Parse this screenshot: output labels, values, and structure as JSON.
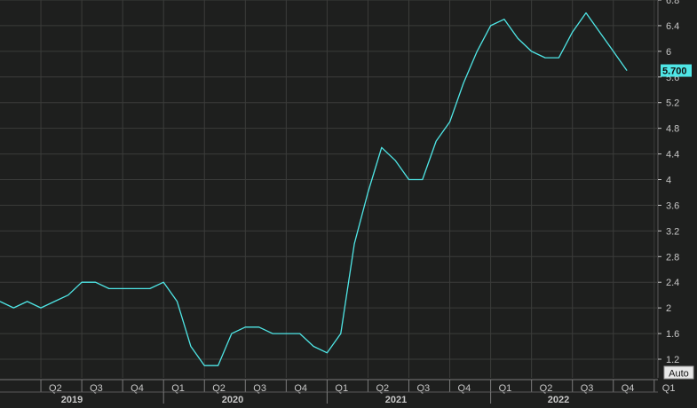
{
  "chart_data": {
    "type": "line",
    "title": "",
    "xlabel": "",
    "ylabel": "",
    "ylim": [
      1.0,
      6.8
    ],
    "y_ticks": [
      "6.8",
      "6.4",
      "6",
      "5.6",
      "5.2",
      "4.8",
      "4.4",
      "4",
      "3.6",
      "3.2",
      "2.8",
      "2.4",
      "2",
      "1.6",
      "1.2"
    ],
    "last_value_label": "5.700",
    "quarter_ticks": [
      "Q2",
      "Q3",
      "Q4",
      "Q1",
      "Q2",
      "Q3",
      "Q4",
      "Q1",
      "Q2",
      "Q3",
      "Q4",
      "Q1",
      "Q2",
      "Q3",
      "Q4",
      "Q1"
    ],
    "year_labels": [
      "2019",
      "2020",
      "2021",
      "2022"
    ],
    "auto_button_label": "Auto",
    "grid": true,
    "x_unit": "month",
    "x": [
      "2019-01",
      "2019-02",
      "2019-03",
      "2019-04",
      "2019-05",
      "2019-06",
      "2019-07",
      "2019-08",
      "2019-09",
      "2019-10",
      "2019-11",
      "2019-12",
      "2020-01",
      "2020-02",
      "2020-03",
      "2020-04",
      "2020-05",
      "2020-06",
      "2020-07",
      "2020-08",
      "2020-09",
      "2020-10",
      "2020-11",
      "2020-12",
      "2021-01",
      "2021-02",
      "2021-03",
      "2021-04",
      "2021-05",
      "2021-06",
      "2021-07",
      "2021-08",
      "2021-09",
      "2021-10",
      "2021-11",
      "2021-12",
      "2022-01",
      "2022-02",
      "2022-03",
      "2022-04",
      "2022-05",
      "2022-06",
      "2022-07",
      "2022-08",
      "2022-09",
      "2022-10",
      "2022-11"
    ],
    "series": [
      {
        "values": [
          2.1,
          2.0,
          2.1,
          2.0,
          2.1,
          2.2,
          2.4,
          2.4,
          2.3,
          2.3,
          2.3,
          2.3,
          2.4,
          2.1,
          1.4,
          1.1,
          1.1,
          1.6,
          1.7,
          1.7,
          1.6,
          1.6,
          1.6,
          1.4,
          1.3,
          1.6,
          3.0,
          3.8,
          4.5,
          4.3,
          4.0,
          4.0,
          4.6,
          4.9,
          5.5,
          6.0,
          6.4,
          6.5,
          6.2,
          6.0,
          5.9,
          5.9,
          6.3,
          6.6,
          6.3,
          6.0,
          5.7
        ]
      }
    ],
    "colors": {
      "background": "#1e1f1e",
      "grid": "#3b3c3a",
      "line": "#4fe6e6",
      "axis_text": "#c8c8c8",
      "last_value_bg": "#4fe6e6",
      "last_value_text": "#111111"
    }
  }
}
